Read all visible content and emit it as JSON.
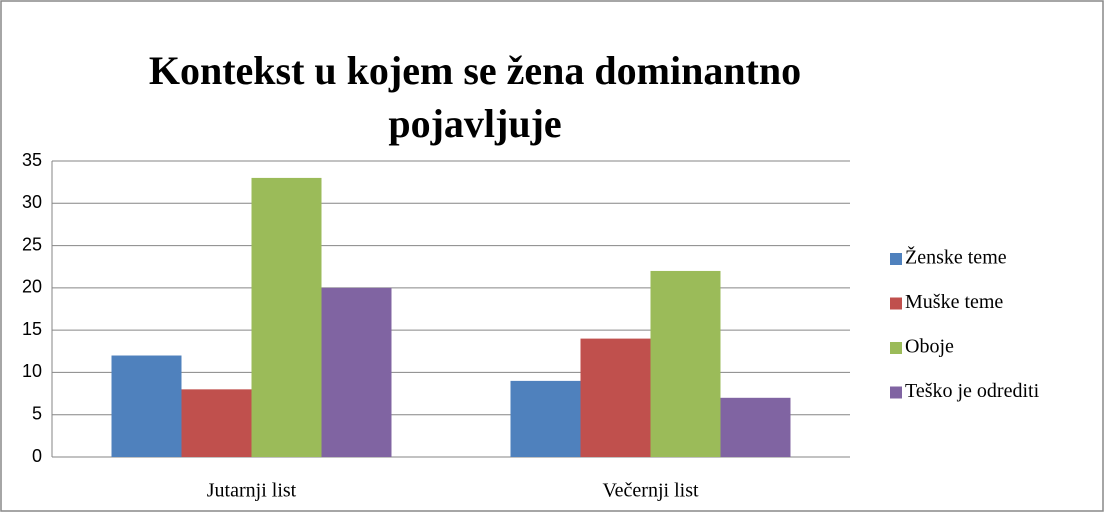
{
  "chart_data": {
    "type": "bar",
    "title": [
      "Kontekst u kojem se žena dominantno",
      "pojavljuje"
    ],
    "categories": [
      "Jutarnji list",
      "Večernji list"
    ],
    "series": [
      {
        "name": "Ženske teme",
        "color": "#4f81bd",
        "values": [
          12,
          9
        ]
      },
      {
        "name": "Muške teme",
        "color": "#c0504d",
        "values": [
          8,
          14
        ]
      },
      {
        "name": "Oboje",
        "color": "#9bbb59",
        "values": [
          33,
          22
        ]
      },
      {
        "name": "Teško je odrediti",
        "color": "#8064a2",
        "values": [
          20,
          7
        ]
      }
    ],
    "ylim": [
      0,
      35
    ],
    "yticks": [
      0,
      5,
      10,
      15,
      20,
      25,
      30,
      35
    ],
    "grid": true,
    "legend": "right"
  }
}
